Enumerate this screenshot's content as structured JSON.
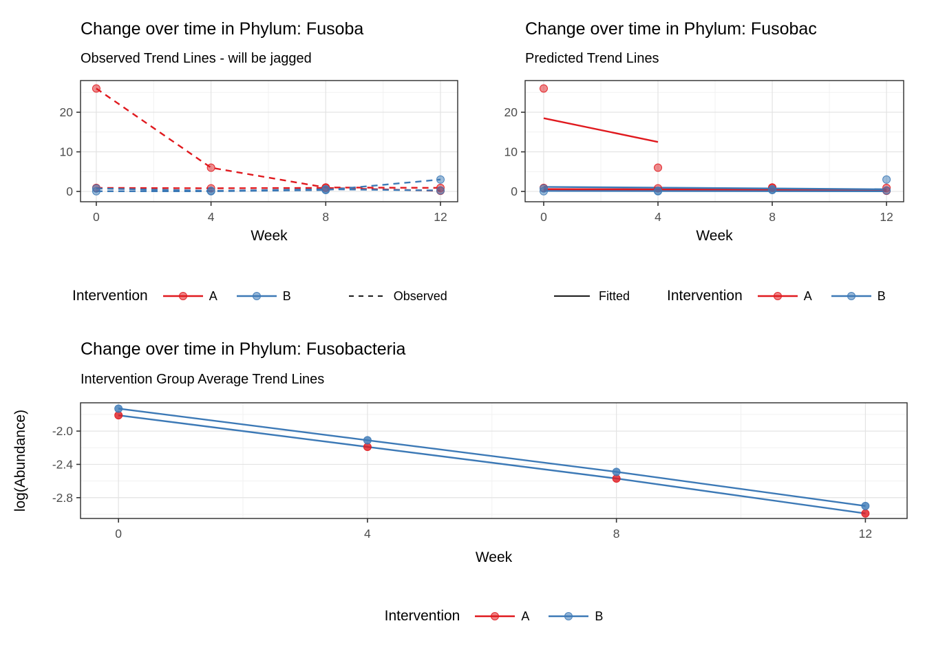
{
  "colors": {
    "red": "#E0191E",
    "blue": "#3C79B6",
    "black_key": "#1A1A1A",
    "panel_border": "#2B2B2B",
    "grid_major": "#E3E3E3",
    "grid_minor": "#F1F1F1",
    "tick_mark": "#333333",
    "tick_label": "#4D4D4D",
    "panel_bg": "#FFFFFF"
  },
  "chart_data": [
    {
      "id": "observed",
      "type": "line",
      "title": "Change over time in Phylum: Fusoba",
      "subtitle": "Observed Trend Lines - will be jagged",
      "xlabel": "Week",
      "ylabel": "",
      "xlim": [
        -0.55,
        12.6
      ],
      "ylim": [
        -2.6,
        28
      ],
      "x_ticks": [
        0,
        4,
        8,
        12
      ],
      "x_tick_labels": [
        "0",
        "4",
        "8",
        "12"
      ],
      "x_minor": [
        2,
        6,
        10
      ],
      "y_ticks": [
        0,
        10,
        20
      ],
      "y_tick_labels": [
        "0",
        "10",
        "20"
      ],
      "y_minor": [
        5,
        15,
        25
      ],
      "grid": true,
      "point_alpha": 0.5,
      "series": [
        {
          "name": "Intervention A subject 1 observed",
          "group": "A",
          "linetype": "dashed",
          "show_points": true,
          "x": [
            0,
            4,
            8,
            12
          ],
          "y": [
            26,
            6,
            1,
            0.9
          ]
        },
        {
          "name": "Intervention A subject 2 observed",
          "group": "A",
          "linetype": "dashed",
          "show_points": true,
          "x": [
            0,
            4,
            8,
            12
          ],
          "y": [
            0.9,
            0.8,
            0.9,
            0.15
          ]
        },
        {
          "name": "Intervention B subject 1 observed",
          "group": "B",
          "linetype": "dashed",
          "show_points": true,
          "x": [
            0,
            4,
            8,
            12
          ],
          "y": [
            0.05,
            0.05,
            0.35,
            3
          ]
        },
        {
          "name": "Intervention B subject 2 observed",
          "group": "B",
          "linetype": "dashed",
          "show_points": true,
          "x": [
            0,
            4,
            8,
            12
          ],
          "y": [
            0.75,
            0.15,
            0.55,
            0.25
          ]
        }
      ]
    },
    {
      "id": "predicted",
      "type": "line",
      "title": "Change over time in Phylum: Fusobac",
      "subtitle": "Predicted Trend Lines",
      "xlabel": "Week",
      "ylabel": "",
      "xlim": [
        -0.65,
        12.6
      ],
      "ylim": [
        -2.6,
        28
      ],
      "x_ticks": [
        0,
        4,
        8,
        12
      ],
      "x_tick_labels": [
        "0",
        "4",
        "8",
        "12"
      ],
      "x_minor": [
        2,
        6,
        10
      ],
      "y_ticks": [
        0,
        10,
        20
      ],
      "y_tick_labels": [
        "0",
        "10",
        "20"
      ],
      "y_minor": [
        5,
        15,
        25
      ],
      "grid": true,
      "point_alpha": 0.5,
      "series": [
        {
          "name": "A subject 1 fitted line",
          "group": "A",
          "linetype": "solid",
          "show_points": false,
          "x": [
            0,
            4
          ],
          "y": [
            18.5,
            12.5
          ]
        },
        {
          "name": "A subject 2 fitted line",
          "group": "A",
          "linetype": "solid",
          "line_width": 3,
          "show_points": false,
          "x": [
            0,
            12
          ],
          "y": [
            0.55,
            0.35
          ]
        },
        {
          "name": "B subject 1 fitted line",
          "group": "B",
          "linetype": "solid",
          "show_points": false,
          "x": [
            0,
            12
          ],
          "y": [
            1.15,
            0.55
          ]
        },
        {
          "name": "B subject 2 fitted line",
          "group": "B",
          "linetype": "solid",
          "show_points": false,
          "x": [
            0,
            12
          ],
          "y": [
            0.12,
            0.05
          ]
        },
        {
          "name": "A subject 1 observed points",
          "group": "A",
          "linetype": "none",
          "show_points": true,
          "x": [
            0,
            4,
            8,
            12
          ],
          "y": [
            26,
            6,
            1,
            0.9
          ]
        },
        {
          "name": "A subject 2 observed points",
          "group": "A",
          "linetype": "none",
          "show_points": true,
          "x": [
            0,
            4,
            8,
            12
          ],
          "y": [
            0.9,
            0.8,
            0.9,
            0.15
          ]
        },
        {
          "name": "B subject 1 observed points",
          "group": "B",
          "linetype": "none",
          "show_points": true,
          "x": [
            0,
            4,
            8,
            12
          ],
          "y": [
            0.05,
            0.05,
            0.35,
            3
          ]
        },
        {
          "name": "B subject 2 observed points",
          "group": "B",
          "linetype": "none",
          "show_points": true,
          "x": [
            0,
            4,
            8,
            12
          ],
          "y": [
            0.75,
            0.15,
            0.55,
            0.25
          ]
        }
      ]
    },
    {
      "id": "average",
      "type": "line",
      "title": "Change over time in Phylum: Fusobacteria",
      "subtitle": "Intervention Group Average Trend Lines",
      "xlabel": "Week",
      "ylabel": "log(Abundance)",
      "xlim": [
        -0.61,
        12.67
      ],
      "ylim": [
        -3.05,
        -1.66
      ],
      "x_ticks": [
        0,
        4,
        8,
        12
      ],
      "x_tick_labels": [
        "0",
        "4",
        "8",
        "12"
      ],
      "x_minor": [
        2,
        6,
        10
      ],
      "y_ticks": [
        -2.0,
        -2.4,
        -2.8
      ],
      "y_tick_labels": [
        "-2.0",
        "-2.4",
        "-2.8"
      ],
      "y_minor": [
        -1.8,
        -2.2,
        -2.6,
        -3.0
      ],
      "grid": true,
      "point_alpha": 0.8,
      "series": [
        {
          "name": "Intervention A group average",
          "group": "A",
          "linetype": "solid",
          "line_color": "blue",
          "show_points": true,
          "x": [
            0,
            4,
            8,
            12
          ],
          "y": [
            -1.81,
            -2.19,
            -2.57,
            -2.99
          ]
        },
        {
          "name": "Intervention B group average",
          "group": "B",
          "linetype": "solid",
          "line_color": "blue",
          "show_points": true,
          "x": [
            0,
            4,
            8,
            12
          ],
          "y": [
            -1.73,
            -2.11,
            -2.49,
            -2.9
          ]
        }
      ]
    }
  ],
  "legends": {
    "observed_row": {
      "title": "Intervention",
      "item_a": "A",
      "item_b": "B",
      "linetype_label": "Observed"
    },
    "predicted_row": {
      "linetype_label": "Fitted",
      "title": "Intervention",
      "item_a": "A",
      "item_b": "B"
    },
    "average_row": {
      "title": "Intervention",
      "item_a": "A",
      "item_b": "B"
    }
  }
}
